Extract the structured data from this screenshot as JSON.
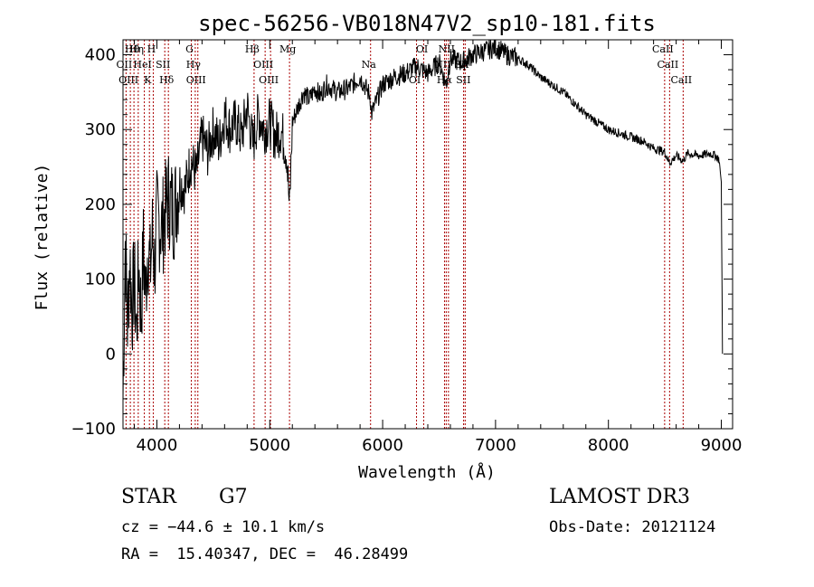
{
  "chart_data": {
    "type": "line",
    "title": "spec-56256-VB018N47V2_sp10-181.fits",
    "xlabel": "Wavelength (Å)",
    "ylabel": "Flux (relative)",
    "xlim": [
      3700,
      9100
    ],
    "ylim": [
      -100,
      420
    ],
    "xticks": [
      4000,
      5000,
      6000,
      7000,
      8000,
      9000
    ],
    "yticks": [
      -100,
      0,
      100,
      200,
      300,
      400
    ],
    "grid": false,
    "line_color": "#000000",
    "marker_color": "#aa0000",
    "series": [
      {
        "name": "flux",
        "x": [
          3700,
          3720,
          3740,
          3760,
          3780,
          3800,
          3820,
          3840,
          3860,
          3880,
          3900,
          3920,
          3940,
          3960,
          3980,
          4000,
          4050,
          4100,
          4150,
          4200,
          4250,
          4300,
          4350,
          4400,
          4450,
          4500,
          4550,
          4600,
          4650,
          4700,
          4750,
          4800,
          4850,
          4900,
          4950,
          5000,
          5050,
          5100,
          5150,
          5175,
          5200,
          5250,
          5300,
          5350,
          5400,
          5450,
          5500,
          5600,
          5700,
          5800,
          5890,
          5900,
          6000,
          6100,
          6200,
          6300,
          6400,
          6500,
          6563,
          6600,
          6700,
          6800,
          6900,
          7000,
          7100,
          7200,
          7300,
          7400,
          7500,
          7600,
          7700,
          7800,
          7900,
          8000,
          8100,
          8200,
          8300,
          8400,
          8500,
          8542,
          8600,
          8662,
          8700,
          8800,
          8900,
          8950,
          8980,
          9000,
          9010
        ],
        "y": [
          -60,
          150,
          40,
          130,
          60,
          100,
          30,
          120,
          50,
          140,
          80,
          150,
          110,
          160,
          120,
          180,
          170,
          210,
          190,
          230,
          220,
          260,
          240,
          290,
          270,
          300,
          280,
          320,
          300,
          310,
          290,
          330,
          280,
          320,
          300,
          310,
          290,
          300,
          270,
          190,
          310,
          330,
          350,
          340,
          355,
          345,
          360,
          350,
          355,
          370,
          345,
          320,
          360,
          370,
          375,
          385,
          375,
          390,
          360,
          395,
          390,
          400,
          405,
          410,
          400,
          395,
          385,
          370,
          360,
          350,
          335,
          320,
          310,
          300,
          295,
          290,
          285,
          275,
          270,
          255,
          265,
          258,
          268,
          265,
          268,
          265,
          260,
          230,
          0
        ]
      }
    ],
    "lines": [
      {
        "label": "Hθ",
        "wavelength": 3797
      },
      {
        "label": "OII",
        "wavelength": 3727
      },
      {
        "label": "OIII",
        "wavelength": 3765
      },
      {
        "label": "Hη",
        "wavelength": 3835
      },
      {
        "label": "HeI",
        "wavelength": 3889
      },
      {
        "label": "K",
        "wavelength": 3934
      },
      {
        "label": "H",
        "wavelength": 3968
      },
      {
        "label": "SII",
        "wavelength": 4070
      },
      {
        "label": "Hδ",
        "wavelength": 4102
      },
      {
        "label": "G",
        "wavelength": 4305
      },
      {
        "label": "Hγ",
        "wavelength": 4340
      },
      {
        "label": "OIII",
        "wavelength": 4363
      },
      {
        "label": "Hβ",
        "wavelength": 4861
      },
      {
        "label": "OIII",
        "wavelength": 4959
      },
      {
        "label": "OIII",
        "wavelength": 5007
      },
      {
        "label": "Mg",
        "wavelength": 5175
      },
      {
        "label": "Na",
        "wavelength": 5893
      },
      {
        "label": "OI",
        "wavelength": 6300
      },
      {
        "label": "OI",
        "wavelength": 6364
      },
      {
        "label": "NII",
        "wavelength": 6548
      },
      {
        "label": "Hα",
        "wavelength": 6563
      },
      {
        "label": "NII",
        "wavelength": 6583
      },
      {
        "label": "SII",
        "wavelength": 6717
      },
      {
        "label": "SII",
        "wavelength": 6731
      },
      {
        "label": "CaII",
        "wavelength": 8498
      },
      {
        "label": "CaII",
        "wavelength": 8542
      },
      {
        "label": "CaII",
        "wavelength": 8662
      }
    ]
  },
  "footer": {
    "object_class": "STAR",
    "subclass": "G7",
    "survey": "LAMOST DR3",
    "redshift": "cz = −44.6 ± 10.1 km/s",
    "obs_date": "Obs-Date: 20121124",
    "coords": "RA =  15.40347, DEC =  46.28499"
  }
}
